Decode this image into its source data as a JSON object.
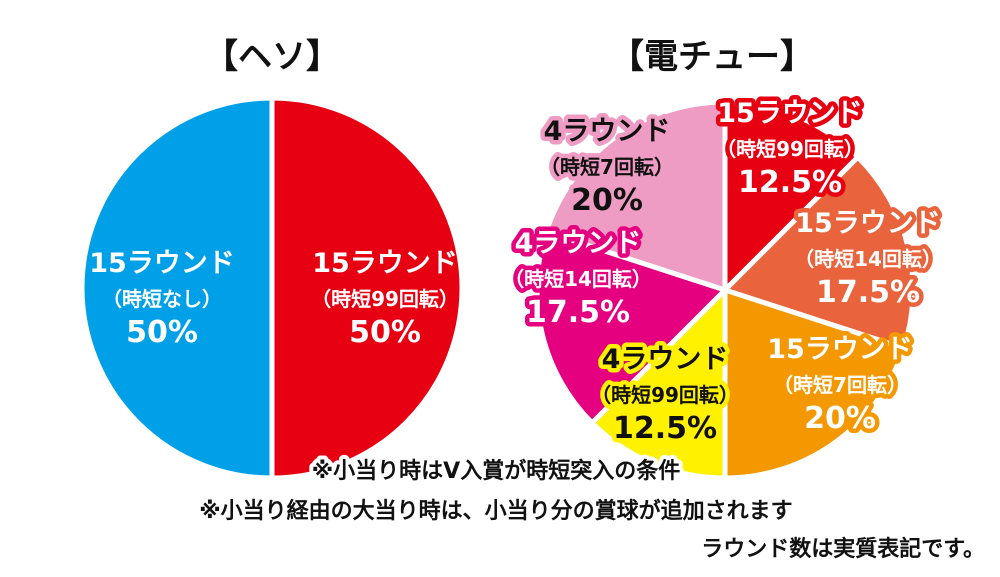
{
  "chart_data": [
    {
      "type": "pie",
      "title": "【ヘソ】",
      "slices": [
        {
          "label": "15ラウンド",
          "sub": "（時短99回転）",
          "pct_label": "50%",
          "value": 50,
          "color": "#e60012",
          "text_color": "#ffffff"
        },
        {
          "label": "15ラウンド",
          "sub": "（時短なし）",
          "pct_label": "50%",
          "value": 50,
          "color": "#00a0e9",
          "text_color": "#ffffff"
        }
      ]
    },
    {
      "type": "pie",
      "title": "【電チュー】",
      "slices": [
        {
          "label": "15ラウンド",
          "sub": "（時短99回転）",
          "pct_label": "12.5%",
          "value": 12.5,
          "color": "#e60012",
          "text_color": "#ffffff"
        },
        {
          "label": "15ラウンド",
          "sub": "（時短14回転）",
          "pct_label": "17.5%",
          "value": 17.5,
          "color": "#e9643c",
          "text_color": "#ffffff"
        },
        {
          "label": "15ラウンド",
          "sub": "（時短7回転）",
          "pct_label": "20%",
          "value": 20,
          "color": "#f39800",
          "text_color": "#ffffff"
        },
        {
          "label": "4ラウンド",
          "sub": "（時短99回転）",
          "pct_label": "12.5%",
          "value": 12.5,
          "color": "#fff100",
          "text_color": "#111111"
        },
        {
          "label": "4ラウンド",
          "sub": "（時短14回転）",
          "pct_label": "17.5%",
          "value": 17.5,
          "color": "#e4007f",
          "text_color": "#ffffff"
        },
        {
          "label": "4ラウンド",
          "sub": "（時短7回転）",
          "pct_label": "20%",
          "value": 20,
          "color": "#ee9cc3",
          "text_color": "#111111"
        }
      ]
    }
  ],
  "notes": [
    "※小当り時はV入賞が時短突入の条件",
    "※小当り経由の大当り時は、小当り分の賞球が追加されます",
    "ラウンド数は実質表記です。"
  ]
}
